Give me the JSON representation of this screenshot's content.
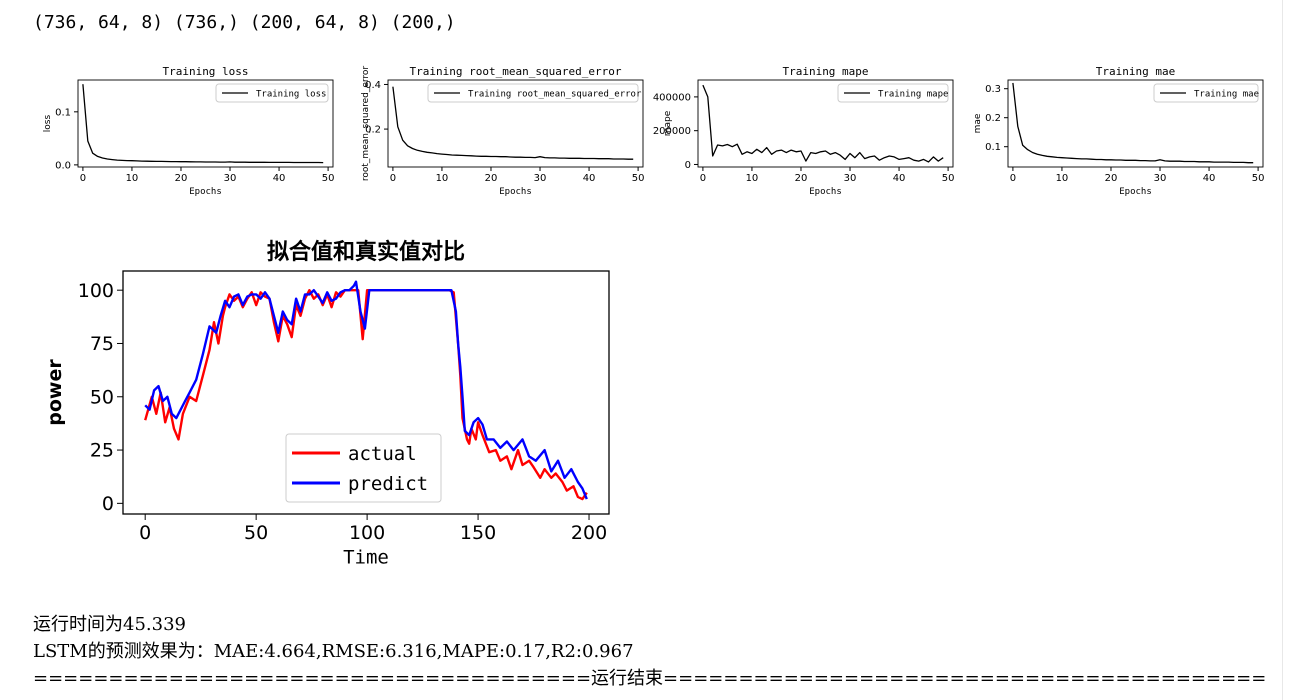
{
  "output": {
    "shapes_line": "(736, 64, 8) (736,) (200, 64, 8) (200,)",
    "runtime_line": "运行时间为45.339",
    "metrics_line": "LSTM的预测效果为：MAE:4.664,RMSE:6.316,MAPE:0.17,R2:0.967",
    "end_line": "=====================================运行结束========================================"
  },
  "chart_data": [
    {
      "type": "line",
      "title": "Training loss",
      "xlabel": "Epochs",
      "ylabel": "loss",
      "xlim": [
        -1,
        51
      ],
      "ylim": [
        -0.004,
        0.16
      ],
      "xticks": [
        0,
        10,
        20,
        30,
        40,
        50
      ],
      "yticks": [
        0.0,
        0.1
      ],
      "ytick_labels": [
        "0.0",
        "0.1"
      ],
      "legend_position": "upper right",
      "grid": false,
      "series": [
        {
          "name": "Training loss",
          "color": "#000000",
          "x": [
            0,
            1,
            2,
            3,
            4,
            5,
            6,
            7,
            8,
            9,
            10,
            11,
            12,
            13,
            14,
            15,
            16,
            17,
            18,
            19,
            20,
            21,
            22,
            23,
            24,
            25,
            26,
            27,
            28,
            29,
            30,
            31,
            32,
            33,
            34,
            35,
            36,
            37,
            38,
            39,
            40,
            41,
            42,
            43,
            44,
            45,
            46,
            47,
            48,
            49
          ],
          "values": [
            0.152,
            0.045,
            0.022,
            0.016,
            0.013,
            0.011,
            0.01,
            0.009,
            0.0085,
            0.008,
            0.0078,
            0.0075,
            0.0072,
            0.007,
            0.0068,
            0.0066,
            0.0065,
            0.0063,
            0.0062,
            0.0061,
            0.006,
            0.0059,
            0.0058,
            0.0057,
            0.0056,
            0.0055,
            0.0055,
            0.0054,
            0.0053,
            0.0052,
            0.0056,
            0.0051,
            0.005,
            0.005,
            0.0049,
            0.0049,
            0.0048,
            0.0048,
            0.0047,
            0.0047,
            0.0046,
            0.0046,
            0.0046,
            0.0045,
            0.0045,
            0.0045,
            0.0044,
            0.0044,
            0.0044,
            0.0043
          ]
        }
      ]
    },
    {
      "type": "line",
      "title": "Training root_mean_squared_error",
      "xlabel": "Epochs",
      "ylabel": "root_mean_squared_error",
      "xlim": [
        -1,
        51
      ],
      "ylim": [
        0.03,
        0.42
      ],
      "xticks": [
        0,
        10,
        20,
        30,
        40,
        50
      ],
      "yticks": [
        0.2,
        0.4
      ],
      "ytick_labels": [
        "0.2",
        "0.4"
      ],
      "legend_position": "upper right",
      "grid": false,
      "series": [
        {
          "name": "Training root_mean_squared_error",
          "color": "#000000",
          "x": [
            0,
            1,
            2,
            3,
            4,
            5,
            6,
            7,
            8,
            9,
            10,
            11,
            12,
            13,
            14,
            15,
            16,
            17,
            18,
            19,
            20,
            21,
            22,
            23,
            24,
            25,
            26,
            27,
            28,
            29,
            30,
            31,
            32,
            33,
            34,
            35,
            36,
            37,
            38,
            39,
            40,
            41,
            42,
            43,
            44,
            45,
            46,
            47,
            48,
            49
          ],
          "values": [
            0.39,
            0.21,
            0.15,
            0.125,
            0.113,
            0.105,
            0.1,
            0.096,
            0.093,
            0.09,
            0.088,
            0.086,
            0.084,
            0.083,
            0.082,
            0.081,
            0.08,
            0.079,
            0.078,
            0.078,
            0.077,
            0.077,
            0.076,
            0.076,
            0.075,
            0.074,
            0.074,
            0.073,
            0.073,
            0.072,
            0.076,
            0.072,
            0.071,
            0.071,
            0.07,
            0.07,
            0.069,
            0.069,
            0.069,
            0.068,
            0.068,
            0.068,
            0.067,
            0.067,
            0.067,
            0.066,
            0.066,
            0.066,
            0.065,
            0.065
          ]
        }
      ]
    },
    {
      "type": "line",
      "title": "Training mape",
      "xlabel": "Epochs",
      "ylabel": "mape",
      "xlim": [
        -1,
        51
      ],
      "ylim": [
        -15000,
        500000
      ],
      "xticks": [
        0,
        10,
        20,
        30,
        40,
        50
      ],
      "yticks": [
        0,
        200000,
        400000
      ],
      "ytick_labels": [
        "0",
        "200000",
        "400000"
      ],
      "legend_position": "upper right",
      "grid": false,
      "series": [
        {
          "name": "Training mape",
          "color": "#000000",
          "x": [
            0,
            1,
            2,
            3,
            4,
            5,
            6,
            7,
            8,
            9,
            10,
            11,
            12,
            13,
            14,
            15,
            16,
            17,
            18,
            19,
            20,
            21,
            22,
            23,
            24,
            25,
            26,
            27,
            28,
            29,
            30,
            31,
            32,
            33,
            34,
            35,
            36,
            37,
            38,
            39,
            40,
            41,
            42,
            43,
            44,
            45,
            46,
            47,
            48,
            49
          ],
          "values": [
            470000,
            400000,
            50000,
            115000,
            110000,
            118000,
            105000,
            120000,
            60000,
            75000,
            65000,
            90000,
            70000,
            100000,
            60000,
            80000,
            85000,
            70000,
            85000,
            75000,
            80000,
            20000,
            70000,
            65000,
            75000,
            80000,
            60000,
            70000,
            55000,
            30000,
            65000,
            40000,
            70000,
            35000,
            45000,
            50000,
            25000,
            40000,
            50000,
            45000,
            30000,
            35000,
            40000,
            25000,
            20000,
            30000,
            15000,
            45000,
            20000,
            40000
          ]
        }
      ]
    },
    {
      "type": "line",
      "title": "Training mae",
      "xlabel": "Epochs",
      "ylabel": "mae",
      "xlim": [
        -1,
        51
      ],
      "ylim": [
        0.03,
        0.33
      ],
      "xticks": [
        0,
        10,
        20,
        30,
        40,
        50
      ],
      "yticks": [
        0.1,
        0.2,
        0.3
      ],
      "ytick_labels": [
        "0.1",
        "0.2",
        "0.3"
      ],
      "legend_position": "upper right",
      "grid": false,
      "series": [
        {
          "name": "Training mae",
          "color": "#000000",
          "x": [
            0,
            1,
            2,
            3,
            4,
            5,
            6,
            7,
            8,
            9,
            10,
            11,
            12,
            13,
            14,
            15,
            16,
            17,
            18,
            19,
            20,
            21,
            22,
            23,
            24,
            25,
            26,
            27,
            28,
            29,
            30,
            31,
            32,
            33,
            34,
            35,
            36,
            37,
            38,
            39,
            40,
            41,
            42,
            43,
            44,
            45,
            46,
            47,
            48,
            49
          ],
          "values": [
            0.32,
            0.17,
            0.105,
            0.09,
            0.08,
            0.074,
            0.07,
            0.067,
            0.065,
            0.063,
            0.062,
            0.061,
            0.06,
            0.059,
            0.058,
            0.058,
            0.057,
            0.056,
            0.056,
            0.055,
            0.055,
            0.054,
            0.054,
            0.053,
            0.053,
            0.053,
            0.052,
            0.052,
            0.051,
            0.051,
            0.055,
            0.051,
            0.05,
            0.05,
            0.05,
            0.049,
            0.049,
            0.049,
            0.048,
            0.048,
            0.048,
            0.047,
            0.047,
            0.047,
            0.047,
            0.046,
            0.046,
            0.046,
            0.045,
            0.045
          ]
        }
      ]
    },
    {
      "type": "line",
      "title": "拟合值和真实值对比",
      "xlabel": "Time",
      "ylabel": "power",
      "xlim": [
        -10,
        209
      ],
      "ylim": [
        -5,
        109
      ],
      "xticks": [
        0,
        50,
        100,
        150,
        200
      ],
      "yticks": [
        0,
        25,
        50,
        75,
        100
      ],
      "ytick_labels": [
        "0",
        "25",
        "50",
        "75",
        "100"
      ],
      "legend_position": "lower center",
      "grid": false,
      "series": [
        {
          "name": "actual",
          "color": "#ff0000",
          "x": [
            0,
            3,
            5,
            7,
            9,
            11,
            13,
            15,
            17,
            20,
            23,
            26,
            29,
            31,
            33,
            35,
            36,
            38,
            40,
            42,
            44,
            46,
            48,
            50,
            52,
            54,
            56,
            58,
            60,
            62,
            64,
            66,
            68,
            70,
            72,
            74,
            76,
            78,
            80,
            82,
            84,
            86,
            88,
            90,
            92,
            94,
            96,
            98,
            100,
            105,
            110,
            115,
            120,
            125,
            130,
            135,
            137,
            139,
            141,
            142,
            143,
            145,
            146,
            147,
            149,
            150,
            152,
            155,
            158,
            160,
            163,
            165,
            168,
            170,
            173,
            175,
            178,
            180,
            183,
            185,
            188,
            190,
            193,
            195,
            197,
            199
          ],
          "values": [
            39,
            50,
            42,
            52,
            38,
            45,
            35,
            30,
            42,
            50,
            48,
            60,
            72,
            85,
            75,
            88,
            92,
            98,
            95,
            97,
            92,
            96,
            99,
            93,
            99,
            97,
            96,
            85,
            76,
            88,
            84,
            78,
            93,
            88,
            96,
            100,
            96,
            98,
            93,
            98,
            92,
            99,
            97,
            100,
            100,
            100,
            100,
            77,
            100,
            100,
            100,
            100,
            100,
            100,
            100,
            100,
            100,
            99,
            75,
            60,
            40,
            30,
            28,
            35,
            30,
            38,
            32,
            24,
            25,
            20,
            22,
            16,
            25,
            18,
            20,
            17,
            12,
            16,
            12,
            14,
            10,
            6,
            8,
            3,
            2,
            5
          ]
        },
        {
          "name": "predict",
          "color": "#0000ff",
          "x": [
            0,
            2,
            4,
            6,
            8,
            10,
            12,
            14,
            16,
            18,
            20,
            23,
            26,
            29,
            32,
            34,
            36,
            38,
            40,
            42,
            44,
            46,
            48,
            50,
            52,
            54,
            56,
            58,
            60,
            62,
            64,
            66,
            68,
            70,
            72,
            74,
            76,
            78,
            80,
            82,
            84,
            86,
            88,
            90,
            92,
            94,
            95,
            97,
            99,
            101,
            105,
            110,
            115,
            120,
            125,
            130,
            135,
            138,
            140,
            141,
            142,
            143,
            144,
            146,
            148,
            150,
            152,
            154,
            157,
            160,
            163,
            166,
            170,
            173,
            176,
            180,
            183,
            186,
            189,
            192,
            195,
            197,
            199
          ],
          "values": [
            46,
            44,
            53,
            55,
            48,
            50,
            42,
            40,
            44,
            48,
            52,
            58,
            70,
            83,
            80,
            88,
            95,
            92,
            97,
            98,
            93,
            97,
            98,
            98,
            96,
            99,
            96,
            88,
            80,
            90,
            86,
            84,
            96,
            90,
            98,
            98,
            100,
            97,
            94,
            99,
            95,
            96,
            99,
            100,
            100,
            102,
            104,
            90,
            82,
            100,
            100,
            100,
            100,
            100,
            100,
            100,
            100,
            100,
            90,
            75,
            64,
            50,
            34,
            32,
            38,
            40,
            37,
            30,
            30,
            26,
            29,
            25,
            30,
            22,
            20,
            25,
            15,
            20,
            12,
            16,
            10,
            7,
            2
          ]
        }
      ]
    }
  ]
}
